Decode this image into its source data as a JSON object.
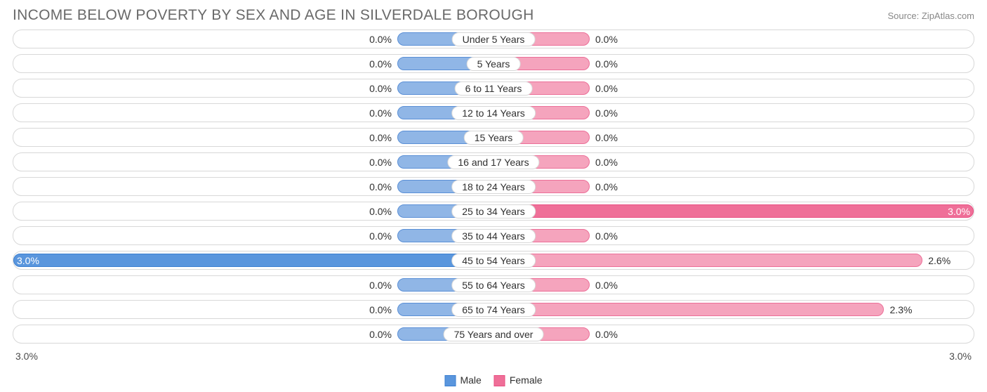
{
  "header": {
    "title": "INCOME BELOW POVERTY BY SEX AND AGE IN SILVERDALE BOROUGH",
    "source": "Source: ZipAtlas.com"
  },
  "chart": {
    "type": "diverging-bar",
    "axis_max": 3.0,
    "axis_left_label": "3.0%",
    "axis_right_label": "3.0%",
    "min_bar_pct": 10.0,
    "colors": {
      "male_fill": "#90b6e6",
      "male_border": "#5a8fd6",
      "male_full_fill": "#5a96dd",
      "male_full_border": "#3b7fd0",
      "female_fill": "#f5a4bd",
      "female_border": "#ec6f98",
      "female_full_fill": "#ef6f98",
      "female_full_border": "#e84f82",
      "track_border": "#d8d8d8",
      "text": "#303030",
      "title_text": "#696969",
      "background": "#ffffff"
    },
    "legend": {
      "male": "Male",
      "female": "Female"
    },
    "rows": [
      {
        "label": "Under 5 Years",
        "male": 0.0,
        "female": 0.0,
        "male_text": "0.0%",
        "female_text": "0.0%"
      },
      {
        "label": "5 Years",
        "male": 0.0,
        "female": 0.0,
        "male_text": "0.0%",
        "female_text": "0.0%"
      },
      {
        "label": "6 to 11 Years",
        "male": 0.0,
        "female": 0.0,
        "male_text": "0.0%",
        "female_text": "0.0%"
      },
      {
        "label": "12 to 14 Years",
        "male": 0.0,
        "female": 0.0,
        "male_text": "0.0%",
        "female_text": "0.0%"
      },
      {
        "label": "15 Years",
        "male": 0.0,
        "female": 0.0,
        "male_text": "0.0%",
        "female_text": "0.0%"
      },
      {
        "label": "16 and 17 Years",
        "male": 0.0,
        "female": 0.0,
        "male_text": "0.0%",
        "female_text": "0.0%"
      },
      {
        "label": "18 to 24 Years",
        "male": 0.0,
        "female": 0.0,
        "male_text": "0.0%",
        "female_text": "0.0%"
      },
      {
        "label": "25 to 34 Years",
        "male": 0.0,
        "female": 3.0,
        "male_text": "0.0%",
        "female_text": "3.0%"
      },
      {
        "label": "35 to 44 Years",
        "male": 0.0,
        "female": 0.0,
        "male_text": "0.0%",
        "female_text": "0.0%"
      },
      {
        "label": "45 to 54 Years",
        "male": 3.0,
        "female": 2.6,
        "male_text": "3.0%",
        "female_text": "2.6%"
      },
      {
        "label": "55 to 64 Years",
        "male": 0.0,
        "female": 0.0,
        "male_text": "0.0%",
        "female_text": "0.0%"
      },
      {
        "label": "65 to 74 Years",
        "male": 0.0,
        "female": 2.3,
        "male_text": "0.0%",
        "female_text": "2.3%"
      },
      {
        "label": "75 Years and over",
        "male": 0.0,
        "female": 0.0,
        "male_text": "0.0%",
        "female_text": "0.0%"
      }
    ]
  }
}
